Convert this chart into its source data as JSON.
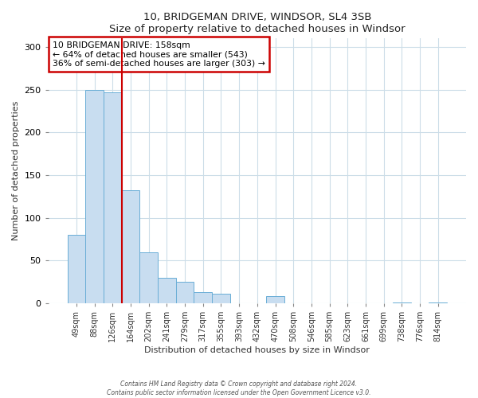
{
  "title": "10, BRIDGEMAN DRIVE, WINDSOR, SL4 3SB",
  "subtitle": "Size of property relative to detached houses in Windsor",
  "xlabel": "Distribution of detached houses by size in Windsor",
  "ylabel": "Number of detached properties",
  "bar_labels": [
    "49sqm",
    "88sqm",
    "126sqm",
    "164sqm",
    "202sqm",
    "241sqm",
    "279sqm",
    "317sqm",
    "355sqm",
    "393sqm",
    "432sqm",
    "470sqm",
    "508sqm",
    "546sqm",
    "585sqm",
    "623sqm",
    "661sqm",
    "699sqm",
    "738sqm",
    "776sqm",
    "814sqm"
  ],
  "bar_values": [
    80,
    250,
    247,
    132,
    60,
    30,
    25,
    13,
    11,
    0,
    0,
    8,
    0,
    0,
    0,
    0,
    0,
    0,
    1,
    0,
    1
  ],
  "bar_color": "#c8ddf0",
  "bar_edge_color": "#6aaed6",
  "vline_x": 2.5,
  "vline_color": "#cc0000",
  "annotation_title": "10 BRIDGEMAN DRIVE: 158sqm",
  "annotation_line1": "← 64% of detached houses are smaller (543)",
  "annotation_line2": "36% of semi-detached houses are larger (303) →",
  "annotation_box_color": "#ffffff",
  "annotation_box_edge_color": "#cc0000",
  "ylim": [
    0,
    310
  ],
  "yticks": [
    0,
    50,
    100,
    150,
    200,
    250,
    300
  ],
  "footnote1": "Contains HM Land Registry data © Crown copyright and database right 2024.",
  "footnote2": "Contains public sector information licensed under the Open Government Licence v3.0."
}
